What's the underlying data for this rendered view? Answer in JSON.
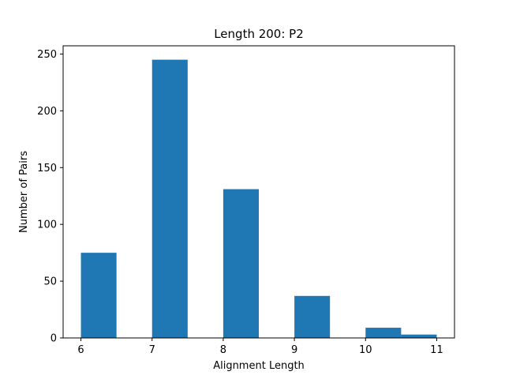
{
  "chart_data": {
    "type": "bar",
    "title": "Length 200: P2",
    "xlabel": "Alignment Length",
    "ylabel": "Number of Pairs",
    "bar_color": "#1f77b4",
    "xlim": [
      5.75,
      11.25
    ],
    "ylim": [
      0,
      257.25
    ],
    "xticks": [
      6,
      7,
      8,
      9,
      10,
      11
    ],
    "yticks": [
      0,
      50,
      100,
      150,
      200,
      250
    ],
    "grid": false,
    "legend": "none",
    "bins": [
      {
        "x0": 6.0,
        "x1": 6.5,
        "value": 75
      },
      {
        "x0": 6.5,
        "x1": 7.0,
        "value": 0
      },
      {
        "x0": 7.0,
        "x1": 7.5,
        "value": 245
      },
      {
        "x0": 7.5,
        "x1": 8.0,
        "value": 0
      },
      {
        "x0": 8.0,
        "x1": 8.5,
        "value": 131
      },
      {
        "x0": 8.5,
        "x1": 9.0,
        "value": 0
      },
      {
        "x0": 9.0,
        "x1": 9.5,
        "value": 37
      },
      {
        "x0": 9.5,
        "x1": 10.0,
        "value": 0
      },
      {
        "x0": 10.0,
        "x1": 10.5,
        "value": 9
      },
      {
        "x0": 10.5,
        "x1": 11.0,
        "value": 3
      }
    ]
  }
}
